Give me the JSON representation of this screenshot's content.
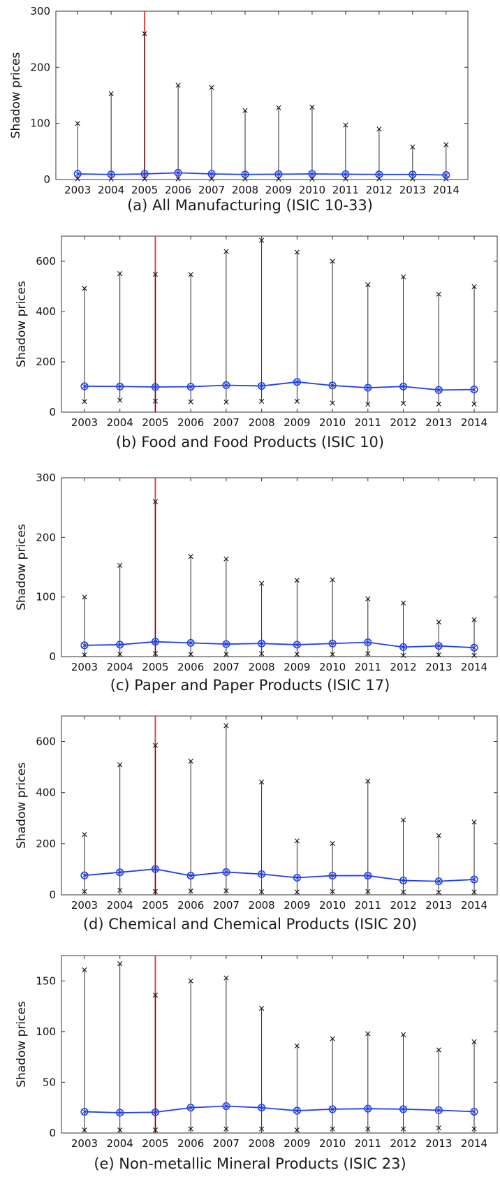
{
  "chart_data": [
    {
      "type": "line",
      "caption": "(a) All Manufacturing (ISIC 10-33)",
      "ylabel": "Shadow prices",
      "x": [
        "2003",
        "2004",
        "2005",
        "2006",
        "2007",
        "2008",
        "2009",
        "2010",
        "2011",
        "2012",
        "2013",
        "2014"
      ],
      "ylim": [
        0,
        300
      ],
      "yticks": [
        0,
        100,
        200,
        300
      ],
      "highlight_x": "2005",
      "highlight_color": "#e8312f",
      "series": [
        {
          "role": "mean",
          "values": [
            10,
            9,
            10,
            12,
            10,
            9,
            9.5,
            10,
            9.5,
            9,
            9,
            8
          ],
          "color": "#1f3ff0"
        },
        {
          "role": "max",
          "values": [
            100,
            153,
            260,
            168,
            164,
            123,
            128,
            129,
            97,
            90,
            58,
            62
          ],
          "color": "#000000"
        },
        {
          "role": "min",
          "values": [
            1,
            1,
            1,
            1,
            1,
            1,
            1,
            1,
            1,
            1,
            1,
            1
          ],
          "color": "#000000"
        }
      ]
    },
    {
      "type": "line",
      "caption": "(b) Food and Food Products (ISIC 10)",
      "ylabel": "Shadow prices",
      "x": [
        "2003",
        "2004",
        "2005",
        "2006",
        "2007",
        "2008",
        "2009",
        "2010",
        "2011",
        "2012",
        "2013",
        "2014"
      ],
      "ylim": [
        0,
        700
      ],
      "yticks": [
        0,
        200,
        400,
        600
      ],
      "highlight_x": "2005",
      "highlight_color": "#e8312f",
      "series": [
        {
          "role": "mean",
          "values": [
            103,
            102,
            100,
            101,
            107,
            104,
            120,
            106,
            97,
            102,
            88,
            90
          ],
          "color": "#1f3ff0"
        },
        {
          "role": "max",
          "values": [
            492,
            551,
            548,
            547,
            639,
            683,
            636,
            600,
            507,
            538,
            469,
            499
          ],
          "color": "#000000"
        },
        {
          "role": "min",
          "values": [
            42,
            47,
            44,
            41,
            40,
            43,
            43,
            36,
            31,
            35,
            32,
            32
          ],
          "color": "#000000"
        }
      ]
    },
    {
      "type": "line",
      "caption": "(c) Paper and Paper Products (ISIC 17)",
      "ylabel": "Shadow prices",
      "x": [
        "2003",
        "2004",
        "2005",
        "2006",
        "2007",
        "2008",
        "2009",
        "2010",
        "2011",
        "2012",
        "2013",
        "2014"
      ],
      "ylim": [
        0,
        300
      ],
      "yticks": [
        0,
        100,
        200,
        300
      ],
      "highlight_x": "2005",
      "highlight_color": "#e8312f",
      "series": [
        {
          "role": "mean",
          "values": [
            19,
            20,
            25,
            23,
            21,
            22,
            20,
            22,
            24,
            16,
            18,
            15
          ],
          "color": "#1f3ff0"
        },
        {
          "role": "max",
          "values": [
            100,
            153,
            260,
            168,
            164,
            123,
            128,
            129,
            97,
            90,
            58,
            62
          ],
          "color": "#000000"
        },
        {
          "role": "min",
          "values": [
            3,
            4,
            5,
            4,
            4,
            5,
            4,
            4,
            5,
            2,
            3,
            2
          ],
          "color": "#000000"
        }
      ]
    },
    {
      "type": "line",
      "caption": "(d) Chemical and Chemical Products (ISIC 20)",
      "ylabel": "Shadow prices",
      "x": [
        "2003",
        "2004",
        "2005",
        "2006",
        "2007",
        "2008",
        "2009",
        "2010",
        "2011",
        "2012",
        "2013",
        "2014"
      ],
      "ylim": [
        0,
        700
      ],
      "yticks": [
        0,
        200,
        400,
        600
      ],
      "highlight_x": "2005",
      "highlight_color": "#e8312f",
      "series": [
        {
          "role": "mean",
          "values": [
            76,
            88,
            101,
            75,
            89,
            81,
            67,
            75,
            75,
            56,
            53,
            60
          ],
          "color": "#1f3ff0"
        },
        {
          "role": "max",
          "values": [
            236,
            509,
            585,
            523,
            662,
            442,
            211,
            201,
            445,
            293,
            232,
            285
          ],
          "color": "#000000"
        },
        {
          "role": "min",
          "values": [
            13,
            18,
            13,
            15,
            16,
            12,
            11,
            13,
            13,
            11,
            10,
            11
          ],
          "color": "#000000"
        }
      ]
    },
    {
      "type": "line",
      "caption": "(e) Non-metallic Mineral Products (ISIC 23)",
      "ylabel": "Shadow prices",
      "x": [
        "2003",
        "2004",
        "2005",
        "2006",
        "2007",
        "2008",
        "2009",
        "2010",
        "2011",
        "2012",
        "2013",
        "2014"
      ],
      "ylim": [
        0,
        175
      ],
      "yticks": [
        0,
        50,
        100,
        150
      ],
      "highlight_x": "2005",
      "highlight_color": "#e8312f",
      "series": [
        {
          "role": "mean",
          "values": [
            21,
            20,
            20.5,
            25,
            26.5,
            25,
            22,
            23.5,
            24,
            23.5,
            22.5,
            21
          ],
          "color": "#1f3ff0"
        },
        {
          "role": "max",
          "values": [
            161,
            167,
            136,
            150,
            153,
            123,
            86,
            93,
            98,
            97,
            82,
            90
          ],
          "color": "#000000"
        },
        {
          "role": "min",
          "values": [
            3,
            3,
            3,
            4,
            4,
            4,
            3,
            4,
            4,
            4,
            5,
            4
          ],
          "color": "#000000"
        }
      ]
    }
  ]
}
